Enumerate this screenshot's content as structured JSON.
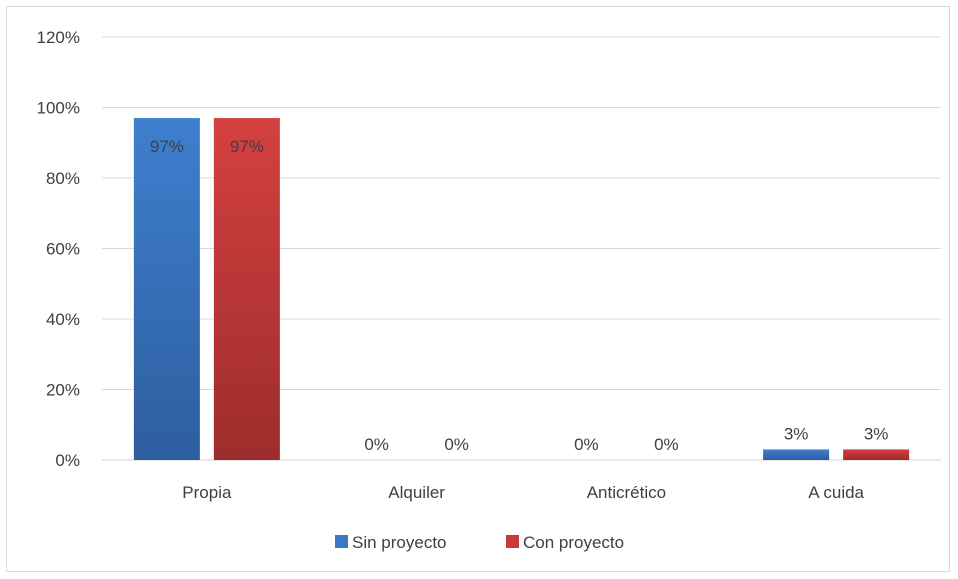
{
  "chart_data": {
    "type": "bar",
    "categories": [
      "Propia",
      "Alquiler",
      "Anticrético",
      "A cuida"
    ],
    "series": [
      {
        "name": "Sin proyecto",
        "values": [
          97,
          0,
          0,
          3
        ],
        "labels": [
          "97%",
          "0%",
          "0%",
          "3%"
        ],
        "color": "#3a78c4"
      },
      {
        "name": "Con proyecto",
        "values": [
          97,
          0,
          0,
          3
        ],
        "labels": [
          "97%",
          "0%",
          "0%",
          "3%"
        ],
        "color": "#c73a3a"
      }
    ],
    "ylim": [
      0,
      120
    ],
    "yticks": [
      0,
      20,
      40,
      60,
      80,
      100,
      120
    ],
    "ytick_labels": [
      "0%",
      "20%",
      "40%",
      "60%",
      "80%",
      "100%",
      "120%"
    ],
    "grid": true,
    "legend": "bottom-center",
    "inner_label_color": "#1f3864"
  }
}
